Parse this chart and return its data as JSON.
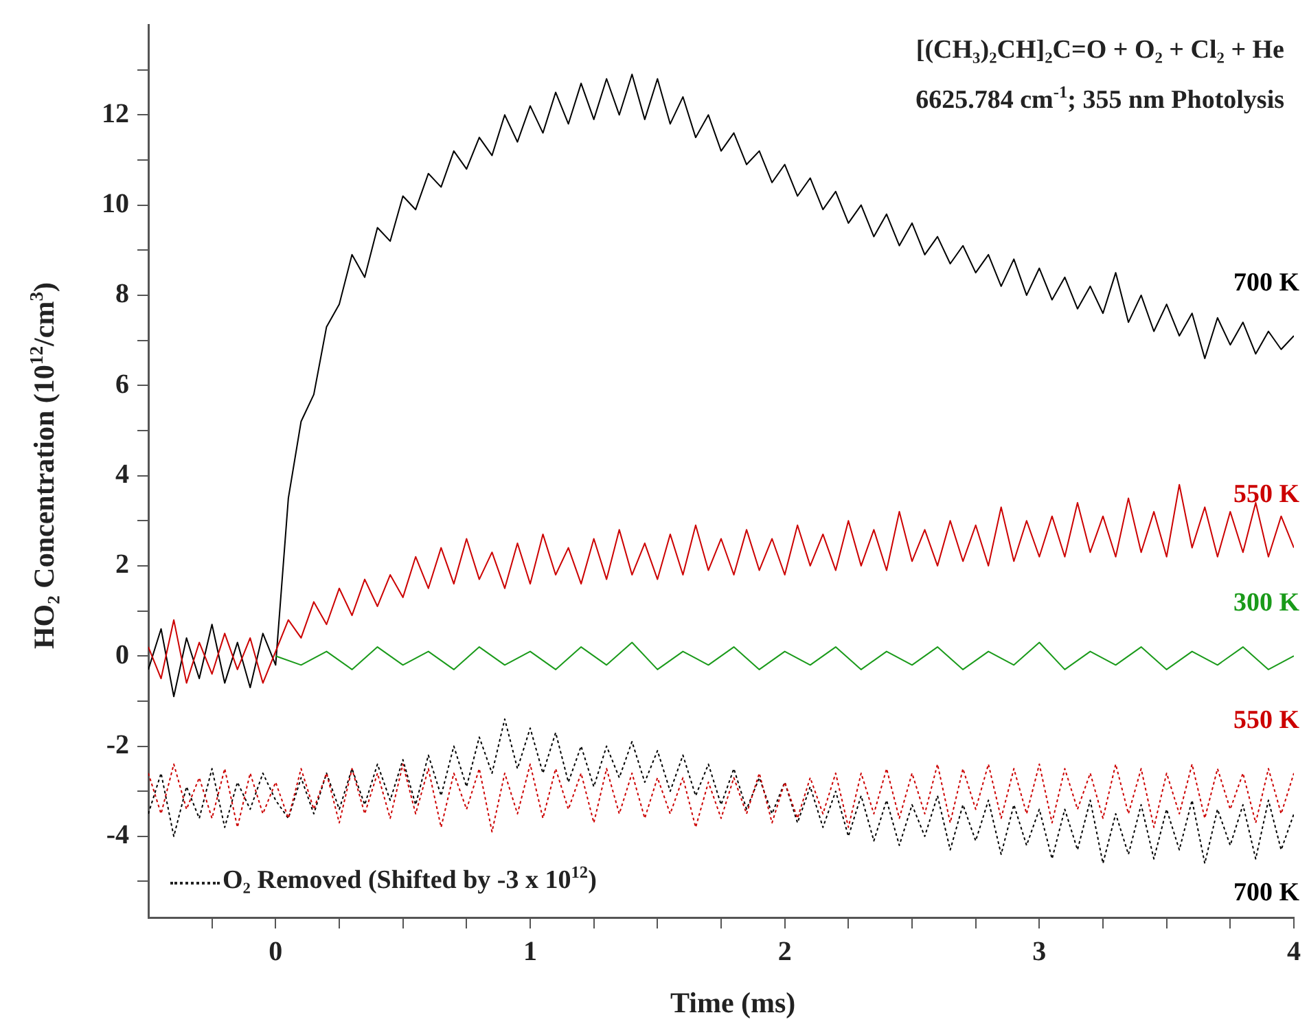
{
  "chart_data": {
    "type": "line",
    "title": "[(CH₃)₂CH]₂C=O + O₂ + Cl₂ + He",
    "subtitle": "6625.784 cm$^{-1}$; 355 nm Photolysis",
    "xlabel": "Time (ms)",
    "ylabel": "HO₂ Concentration (10$^{12}$/cm$^{3}$)",
    "annotations": [
      "O₂ Removed (Shifted by -3 x 10$^{12}$)"
    ],
    "x": [
      -0.5,
      -0.45,
      -0.4,
      -0.35,
      -0.3,
      -0.25,
      -0.2,
      -0.15,
      -0.1,
      -0.05,
      0,
      0.05,
      0.1,
      0.15,
      0.2,
      0.25,
      0.3,
      0.35,
      0.4,
      0.45,
      0.5,
      0.55,
      0.6,
      0.65,
      0.7,
      0.75,
      0.8,
      0.85,
      0.9,
      0.95,
      1,
      1.05,
      1.1,
      1.15,
      1.2,
      1.25,
      1.3,
      1.35,
      1.4,
      1.45,
      1.5,
      1.55,
      1.6,
      1.65,
      1.7,
      1.75,
      1.8,
      1.85,
      1.9,
      1.95,
      2,
      2.05,
      2.1,
      2.15,
      2.2,
      2.25,
      2.3,
      2.35,
      2.4,
      2.45,
      2.5,
      2.55,
      2.6,
      2.65,
      2.7,
      2.75,
      2.8,
      2.85,
      2.9,
      2.95,
      3,
      3.05,
      3.1,
      3.15,
      3.2,
      3.25,
      3.3,
      3.35,
      3.4,
      3.45,
      3.5,
      3.55,
      3.6,
      3.65,
      3.7,
      3.75,
      3.8,
      3.85,
      3.9,
      3.95,
      4
    ],
    "series": [
      {
        "name": "550 K",
        "color": "#cc0000",
        "line_style": "dotted",
        "values": [
          -2.6,
          -3.5,
          -2.4,
          -3.4,
          -2.7,
          -3.6,
          -2.5,
          -3.8,
          -2.6,
          -3.5,
          -2.8,
          -3.6,
          -2.5,
          -3.4,
          -2.6,
          -3.7,
          -2.5,
          -3.5,
          -2.6,
          -3.6,
          -2.4,
          -3.5,
          -2.5,
          -3.8,
          -2.6,
          -3.4,
          -2.5,
          -3.9,
          -2.6,
          -3.5,
          -2.4,
          -3.6,
          -2.5,
          -3.4,
          -2.6,
          -3.7,
          -2.5,
          -3.5,
          -2.6,
          -3.6,
          -2.7,
          -3.5,
          -2.7,
          -3.8,
          -2.8,
          -3.6,
          -2.7,
          -3.5,
          -2.6,
          -3.7,
          -2.8,
          -3.6,
          -2.7,
          -3.5,
          -2.6,
          -3.8,
          -2.6,
          -3.5,
          -2.5,
          -3.6,
          -2.6,
          -3.5,
          -2.4,
          -3.7,
          -2.5,
          -3.4,
          -2.4,
          -3.6,
          -2.5,
          -3.5,
          -2.4,
          -3.7,
          -2.5,
          -3.4,
          -2.6,
          -3.6,
          -2.4,
          -3.5,
          -2.5,
          -3.8,
          -2.6,
          -3.5,
          -2.4,
          -3.6,
          -2.5,
          -3.4,
          -2.6,
          -3.7,
          -2.5,
          -3.5,
          -2.6
        ]
      },
      {
        "name": "700 K",
        "color": "#000000",
        "line_style": "dotted",
        "values": [
          -3.5,
          -2.6,
          -4.0,
          -2.9,
          -3.6,
          -2.5,
          -3.8,
          -2.8,
          -3.4,
          -2.6,
          -3.2,
          -3.6,
          -2.7,
          -3.5,
          -2.6,
          -3.4,
          -2.5,
          -3.3,
          -2.4,
          -3.2,
          -2.3,
          -3.3,
          -2.2,
          -3.1,
          -2.0,
          -2.9,
          -1.8,
          -2.6,
          -1.4,
          -2.5,
          -1.6,
          -2.6,
          -1.7,
          -2.8,
          -2.0,
          -2.9,
          -2.0,
          -2.7,
          -1.9,
          -2.8,
          -2.1,
          -3.0,
          -2.2,
          -3.1,
          -2.4,
          -3.3,
          -2.5,
          -3.4,
          -2.7,
          -3.5,
          -2.8,
          -3.7,
          -2.9,
          -3.8,
          -3.0,
          -4.0,
          -3.1,
          -4.1,
          -3.2,
          -4.2,
          -3.3,
          -4.0,
          -3.1,
          -4.3,
          -3.3,
          -4.1,
          -3.2,
          -4.4,
          -3.3,
          -4.2,
          -3.4,
          -4.5,
          -3.4,
          -4.3,
          -3.2,
          -4.6,
          -3.5,
          -4.4,
          -3.3,
          -4.5,
          -3.4,
          -4.3,
          -3.2,
          -4.6,
          -3.4,
          -4.2,
          -3.3,
          -4.5,
          -3.2,
          -4.3,
          -3.5
        ]
      },
      {
        "name": "300 K",
        "color": "#1a9a1a",
        "x": [
          0,
          0.1,
          0.2,
          0.3,
          0.4,
          0.5,
          0.6,
          0.7,
          0.8,
          0.9,
          1,
          1.1,
          1.2,
          1.3,
          1.4,
          1.5,
          1.6,
          1.7,
          1.8,
          1.9,
          2,
          2.1,
          2.2,
          2.3,
          2.4,
          2.5,
          2.6,
          2.7,
          2.8,
          2.9,
          3,
          3.1,
          3.2,
          3.3,
          3.4,
          3.5,
          3.6,
          3.7,
          3.8,
          3.9,
          4
        ],
        "values": [
          0.0,
          -0.2,
          0.1,
          -0.3,
          0.2,
          -0.2,
          0.1,
          -0.3,
          0.2,
          -0.2,
          0.1,
          -0.3,
          0.2,
          -0.2,
          0.3,
          -0.3,
          0.1,
          -0.2,
          0.2,
          -0.3,
          0.1,
          -0.2,
          0.2,
          -0.3,
          0.1,
          -0.2,
          0.2,
          -0.3,
          0.1,
          -0.2,
          0.3,
          -0.3,
          0.1,
          -0.2,
          0.2,
          -0.3,
          0.1,
          -0.2,
          0.2,
          -0.3,
          0.0
        ]
      },
      {
        "name": "550 K",
        "color": "#cc0000",
        "values": [
          0.2,
          -0.5,
          0.8,
          -0.6,
          0.3,
          -0.4,
          0.5,
          -0.3,
          0.4,
          -0.6,
          0.1,
          0.8,
          0.4,
          1.2,
          0.7,
          1.5,
          0.9,
          1.7,
          1.1,
          1.8,
          1.3,
          2.2,
          1.5,
          2.4,
          1.6,
          2.6,
          1.7,
          2.3,
          1.5,
          2.5,
          1.6,
          2.7,
          1.8,
          2.4,
          1.6,
          2.6,
          1.7,
          2.8,
          1.8,
          2.5,
          1.7,
          2.7,
          1.8,
          2.9,
          1.9,
          2.6,
          1.8,
          2.8,
          1.9,
          2.6,
          1.8,
          2.9,
          2.0,
          2.7,
          1.9,
          3.0,
          2.0,
          2.8,
          1.9,
          3.2,
          2.1,
          2.8,
          2.0,
          3.0,
          2.1,
          2.9,
          2.0,
          3.3,
          2.1,
          3.0,
          2.2,
          3.1,
          2.2,
          3.4,
          2.3,
          3.1,
          2.2,
          3.5,
          2.3,
          3.2,
          2.2,
          3.8,
          2.4,
          3.3,
          2.2,
          3.2,
          2.3,
          3.4,
          2.2,
          3.1,
          2.4
        ]
      },
      {
        "name": "700 K",
        "color": "#000000",
        "values": [
          -0.3,
          0.6,
          -0.9,
          0.4,
          -0.5,
          0.7,
          -0.6,
          0.3,
          -0.7,
          0.5,
          -0.2,
          3.5,
          5.2,
          5.8,
          7.3,
          7.8,
          8.9,
          8.4,
          9.5,
          9.2,
          10.2,
          9.9,
          10.7,
          10.4,
          11.2,
          10.8,
          11.5,
          11.1,
          12.0,
          11.4,
          12.2,
          11.6,
          12.5,
          11.8,
          12.7,
          11.9,
          12.8,
          12.0,
          12.9,
          11.9,
          12.8,
          11.8,
          12.4,
          11.5,
          12.0,
          11.2,
          11.6,
          10.9,
          11.2,
          10.5,
          10.9,
          10.2,
          10.6,
          9.9,
          10.3,
          9.6,
          10.0,
          9.3,
          9.8,
          9.1,
          9.6,
          8.9,
          9.3,
          8.7,
          9.1,
          8.5,
          8.9,
          8.2,
          8.8,
          8.0,
          8.6,
          7.9,
          8.4,
          7.7,
          8.2,
          7.6,
          8.5,
          7.4,
          8.0,
          7.2,
          7.8,
          7.1,
          7.6,
          6.6,
          7.5,
          6.9,
          7.4,
          6.7,
          7.2,
          6.8,
          7.1
        ]
      }
    ],
    "xlim": [
      -0.5,
      4
    ],
    "xticks": [
      {
        "value": -0.25,
        "label": null
      },
      0,
      {
        "value": 0.25,
        "label": null
      },
      {
        "value": 0.5,
        "label": null
      },
      {
        "value": 0.75,
        "label": null
      },
      1,
      {
        "value": 1.25,
        "label": null
      },
      {
        "value": 1.5,
        "label": null
      },
      {
        "value": 1.75,
        "label": null
      },
      2,
      {
        "value": 2.25,
        "label": null
      },
      {
        "value": 2.5,
        "label": null
      },
      {
        "value": 2.75,
        "label": null
      },
      3,
      {
        "value": 3.25,
        "label": null
      },
      {
        "value": 3.5,
        "label": null
      },
      {
        "value": 3.75,
        "label": null
      },
      4
    ],
    "ylim": [
      -5.8,
      14
    ],
    "yticks": [
      {
        "value": -5,
        "label": null
      },
      -4,
      {
        "value": -3,
        "label": null
      },
      -2,
      {
        "value": -1,
        "label": null
      },
      0,
      {
        "value": 1,
        "label": null
      },
      2,
      {
        "value": 3,
        "label": null
      },
      4,
      {
        "value": 5,
        "label": null
      },
      6,
      {
        "value": 7,
        "label": null
      },
      8,
      {
        "value": 9,
        "label": null
      },
      10,
      {
        "value": 11,
        "label": null
      },
      12,
      {
        "value": 13,
        "label": null
      }
    ],
    "grid": false,
    "legend": false,
    "marker": "none"
  }
}
